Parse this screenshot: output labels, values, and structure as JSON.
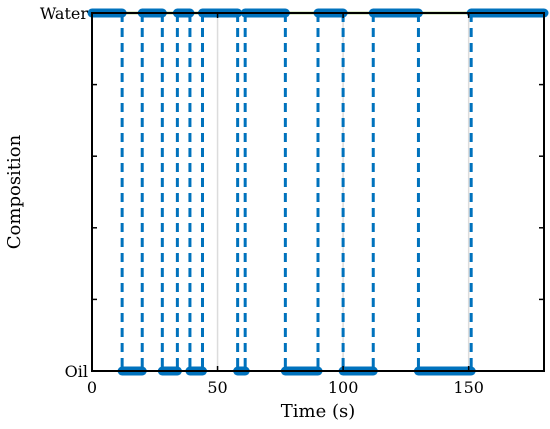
{
  "chart_data": {
    "type": "line",
    "xlabel": "Time (s)",
    "ylabel": "Composition",
    "xlim": [
      0,
      180
    ],
    "x_ticks": [
      0,
      50,
      100,
      150
    ],
    "y_categories": [
      "Oil",
      "Water"
    ],
    "grid": true,
    "legend": "none",
    "reference_line": {
      "level": "Water",
      "x": [
        0,
        180
      ],
      "color": "#77AC30"
    },
    "series": [
      {
        "style": "dashed steps with thick segments",
        "color": "#0072BD",
        "segments": [
          {
            "state": "Water",
            "x0": 0,
            "x1": 12
          },
          {
            "state": "Oil",
            "x0": 12,
            "x1": 20
          },
          {
            "state": "Water",
            "x0": 20,
            "x1": 28
          },
          {
            "state": "Oil",
            "x0": 28,
            "x1": 34
          },
          {
            "state": "Water",
            "x0": 34,
            "x1": 39
          },
          {
            "state": "Oil",
            "x0": 39,
            "x1": 44
          },
          {
            "state": "Water",
            "x0": 44,
            "x1": 58
          },
          {
            "state": "Oil",
            "x0": 58,
            "x1": 61
          },
          {
            "state": "Water",
            "x0": 61,
            "x1": 77
          },
          {
            "state": "Oil",
            "x0": 77,
            "x1": 90
          },
          {
            "state": "Water",
            "x0": 90,
            "x1": 100
          },
          {
            "state": "Oil",
            "x0": 100,
            "x1": 112
          },
          {
            "state": "Water",
            "x0": 112,
            "x1": 130
          },
          {
            "state": "Oil",
            "x0": 130,
            "x1": 151
          },
          {
            "state": "Water",
            "x0": 151,
            "x1": 180
          }
        ]
      }
    ]
  }
}
